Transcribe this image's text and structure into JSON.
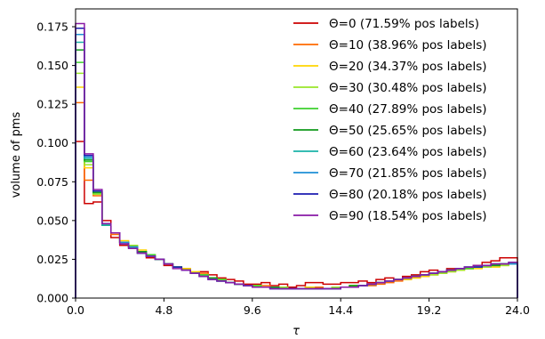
{
  "chart_data": {
    "type": "line",
    "title": "",
    "xlabel": "τ",
    "ylabel": "volume of pms",
    "xlim": [
      0,
      24
    ],
    "ylim": [
      0,
      0.1865
    ],
    "xticks": [
      0,
      4.8,
      9.6,
      14.4,
      19.2,
      24
    ],
    "xtick_labels": [
      "0.0",
      "4.8",
      "9.6",
      "14.4",
      "19.2",
      "24.0"
    ],
    "yticks": [
      0,
      0.025,
      0.05,
      0.075,
      0.1,
      0.125,
      0.15,
      0.175
    ],
    "ytick_labels": [
      "0.000",
      "0.025",
      "0.050",
      "0.075",
      "0.100",
      "0.125",
      "0.150",
      "0.175"
    ],
    "grid": false,
    "legend_position": "top-right",
    "bin_edges": [
      0,
      0.48,
      0.96,
      1.44,
      1.92,
      2.4,
      2.88,
      3.36,
      3.84,
      4.32,
      4.8,
      5.28,
      5.76,
      6.24,
      6.72,
      7.2,
      7.68,
      8.16,
      8.64,
      9.12,
      9.6,
      10.08,
      10.56,
      11.04,
      11.52,
      12.0,
      12.48,
      12.96,
      13.44,
      13.92,
      14.4,
      14.88,
      15.36,
      15.84,
      16.32,
      16.8,
      17.28,
      17.76,
      18.24,
      18.72,
      19.2,
      19.68,
      20.16,
      20.64,
      21.12,
      21.6,
      22.08,
      22.56,
      23.04,
      23.52,
      24.0
    ],
    "series": [
      {
        "name": "Θ=0 (71.59% pos labels)",
        "color": "#cc0000",
        "values": [
          0.101,
          0.061,
          0.062,
          0.05,
          0.039,
          0.034,
          0.033,
          0.029,
          0.026,
          0.025,
          0.021,
          0.02,
          0.019,
          0.016,
          0.017,
          0.015,
          0.013,
          0.012,
          0.011,
          0.009,
          0.009,
          0.01,
          0.008,
          0.009,
          0.007,
          0.008,
          0.01,
          0.01,
          0.009,
          0.009,
          0.01,
          0.01,
          0.011,
          0.01,
          0.012,
          0.013,
          0.012,
          0.014,
          0.015,
          0.017,
          0.018,
          0.017,
          0.019,
          0.018,
          0.019,
          0.021,
          0.023,
          0.024,
          0.026,
          0.026
        ]
      },
      {
        "name": "Θ=10 (38.96% pos labels)",
        "color": "#ff6a00",
        "values": [
          0.126,
          0.076,
          0.066,
          0.047,
          0.041,
          0.036,
          0.033,
          0.03,
          0.028,
          0.025,
          0.022,
          0.02,
          0.019,
          0.016,
          0.016,
          0.013,
          0.012,
          0.01,
          0.009,
          0.008,
          0.008,
          0.008,
          0.007,
          0.007,
          0.006,
          0.006,
          0.007,
          0.007,
          0.006,
          0.007,
          0.007,
          0.008,
          0.008,
          0.008,
          0.009,
          0.01,
          0.011,
          0.012,
          0.013,
          0.014,
          0.015,
          0.016,
          0.017,
          0.018,
          0.019,
          0.02,
          0.02,
          0.021,
          0.022,
          0.022
        ]
      },
      {
        "name": "Θ=20 (34.37% pos labels)",
        "color": "#ffd400",
        "values": [
          0.136,
          0.084,
          0.067,
          0.047,
          0.042,
          0.037,
          0.034,
          0.031,
          0.028,
          0.025,
          0.022,
          0.02,
          0.019,
          0.017,
          0.015,
          0.013,
          0.012,
          0.01,
          0.009,
          0.008,
          0.008,
          0.007,
          0.007,
          0.007,
          0.006,
          0.006,
          0.007,
          0.006,
          0.006,
          0.007,
          0.007,
          0.008,
          0.008,
          0.009,
          0.01,
          0.011,
          0.012,
          0.012,
          0.013,
          0.014,
          0.015,
          0.016,
          0.017,
          0.018,
          0.019,
          0.019,
          0.02,
          0.02,
          0.021,
          0.022
        ]
      },
      {
        "name": "Θ=30 (30.48% pos labels)",
        "color": "#9ae62a",
        "values": [
          0.145,
          0.086,
          0.067,
          0.047,
          0.042,
          0.036,
          0.034,
          0.03,
          0.028,
          0.025,
          0.022,
          0.02,
          0.018,
          0.016,
          0.015,
          0.013,
          0.012,
          0.01,
          0.009,
          0.008,
          0.008,
          0.007,
          0.007,
          0.007,
          0.006,
          0.006,
          0.006,
          0.006,
          0.006,
          0.007,
          0.007,
          0.008,
          0.008,
          0.009,
          0.01,
          0.011,
          0.012,
          0.013,
          0.014,
          0.015,
          0.015,
          0.016,
          0.017,
          0.018,
          0.019,
          0.02,
          0.02,
          0.021,
          0.021,
          0.022
        ]
      },
      {
        "name": "Θ=40 (27.89% pos labels)",
        "color": "#3dd12e",
        "values": [
          0.152,
          0.088,
          0.068,
          0.047,
          0.042,
          0.036,
          0.033,
          0.03,
          0.028,
          0.025,
          0.022,
          0.02,
          0.018,
          0.016,
          0.015,
          0.013,
          0.012,
          0.01,
          0.009,
          0.008,
          0.008,
          0.007,
          0.007,
          0.006,
          0.006,
          0.006,
          0.006,
          0.006,
          0.006,
          0.006,
          0.007,
          0.008,
          0.008,
          0.009,
          0.01,
          0.011,
          0.012,
          0.013,
          0.014,
          0.015,
          0.016,
          0.017,
          0.018,
          0.019,
          0.019,
          0.02,
          0.021,
          0.021,
          0.022,
          0.022
        ]
      },
      {
        "name": "Θ=50 (25.65% pos labels)",
        "color": "#119a1c",
        "values": [
          0.16,
          0.089,
          0.068,
          0.047,
          0.042,
          0.036,
          0.033,
          0.03,
          0.027,
          0.025,
          0.022,
          0.02,
          0.018,
          0.016,
          0.014,
          0.013,
          0.011,
          0.01,
          0.009,
          0.008,
          0.007,
          0.007,
          0.007,
          0.006,
          0.006,
          0.006,
          0.006,
          0.006,
          0.006,
          0.006,
          0.007,
          0.008,
          0.008,
          0.009,
          0.01,
          0.011,
          0.012,
          0.013,
          0.014,
          0.015,
          0.016,
          0.017,
          0.018,
          0.019,
          0.02,
          0.02,
          0.021,
          0.021,
          0.022,
          0.022
        ]
      },
      {
        "name": "Θ=60 (23.64% pos labels)",
        "color": "#19b3a8",
        "values": [
          0.165,
          0.09,
          0.069,
          0.047,
          0.042,
          0.036,
          0.033,
          0.029,
          0.027,
          0.025,
          0.022,
          0.02,
          0.018,
          0.016,
          0.014,
          0.012,
          0.011,
          0.01,
          0.009,
          0.008,
          0.007,
          0.007,
          0.006,
          0.006,
          0.006,
          0.006,
          0.006,
          0.006,
          0.006,
          0.006,
          0.007,
          0.007,
          0.008,
          0.009,
          0.01,
          0.011,
          0.012,
          0.013,
          0.014,
          0.015,
          0.016,
          0.017,
          0.018,
          0.019,
          0.02,
          0.02,
          0.021,
          0.022,
          0.022,
          0.022
        ]
      },
      {
        "name": "Θ=70 (21.85% pos labels)",
        "color": "#1e8fd6",
        "values": [
          0.17,
          0.091,
          0.069,
          0.048,
          0.042,
          0.036,
          0.033,
          0.029,
          0.027,
          0.025,
          0.022,
          0.02,
          0.018,
          0.016,
          0.014,
          0.012,
          0.011,
          0.01,
          0.009,
          0.008,
          0.007,
          0.007,
          0.006,
          0.006,
          0.006,
          0.006,
          0.006,
          0.006,
          0.006,
          0.006,
          0.007,
          0.007,
          0.008,
          0.009,
          0.01,
          0.011,
          0.012,
          0.013,
          0.014,
          0.015,
          0.016,
          0.017,
          0.018,
          0.019,
          0.02,
          0.02,
          0.021,
          0.022,
          0.022,
          0.022
        ]
      },
      {
        "name": "Θ=80 (20.18% pos labels)",
        "color": "#1c1cb0",
        "values": [
          0.174,
          0.092,
          0.069,
          0.048,
          0.042,
          0.035,
          0.032,
          0.029,
          0.027,
          0.025,
          0.022,
          0.02,
          0.018,
          0.016,
          0.014,
          0.012,
          0.011,
          0.01,
          0.009,
          0.008,
          0.007,
          0.007,
          0.006,
          0.006,
          0.006,
          0.006,
          0.006,
          0.006,
          0.006,
          0.006,
          0.007,
          0.007,
          0.008,
          0.009,
          0.01,
          0.011,
          0.012,
          0.013,
          0.014,
          0.015,
          0.016,
          0.017,
          0.018,
          0.019,
          0.02,
          0.02,
          0.021,
          0.022,
          0.022,
          0.023
        ]
      },
      {
        "name": "Θ=90 (18.54% pos labels)",
        "color": "#8a1aa6",
        "values": [
          0.177,
          0.093,
          0.07,
          0.048,
          0.042,
          0.035,
          0.032,
          0.029,
          0.027,
          0.025,
          0.022,
          0.019,
          0.018,
          0.016,
          0.014,
          0.012,
          0.011,
          0.01,
          0.009,
          0.008,
          0.007,
          0.007,
          0.006,
          0.006,
          0.006,
          0.006,
          0.006,
          0.006,
          0.006,
          0.006,
          0.007,
          0.007,
          0.008,
          0.009,
          0.01,
          0.011,
          0.012,
          0.013,
          0.014,
          0.015,
          0.016,
          0.017,
          0.018,
          0.019,
          0.02,
          0.021,
          0.021,
          0.022,
          0.022,
          0.023
        ]
      }
    ]
  }
}
